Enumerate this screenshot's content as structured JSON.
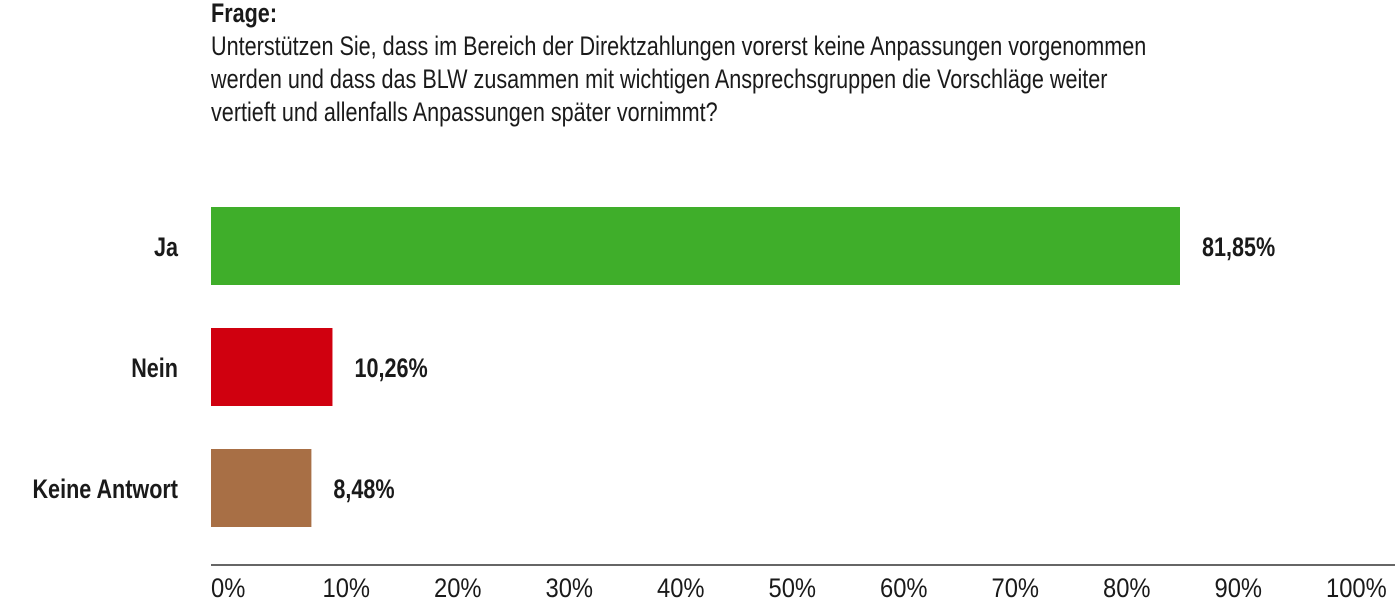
{
  "question": {
    "label": "Frage:",
    "lines": [
      "Unterstützen Sie, dass im Bereich der Direktzahlungen vorerst keine Anpassungen vorgenommen",
      "werden und dass das BLW zusammen mit wichtigen Ansprechsgruppen die Vorschläge weiter",
      "vertieft und allenfalls Anpassungen später vornimmt?"
    ]
  },
  "chart_data": {
    "type": "bar",
    "orientation": "horizontal",
    "categories": [
      "Ja",
      "Nein",
      "Keine Antwort"
    ],
    "values": [
      81.85,
      10.26,
      8.48
    ],
    "value_labels": [
      "81,85%",
      "10,26%",
      "8,48%"
    ],
    "colors": [
      "#3fae2a",
      "#d0000f",
      "#a86f45"
    ],
    "xlim": [
      0,
      100
    ],
    "xticks": [
      "0%",
      "10%",
      "20%",
      "30%",
      "40%",
      "50%",
      "60%",
      "70%",
      "80%",
      "90%",
      "100%"
    ],
    "grid": false,
    "legend": "none"
  }
}
